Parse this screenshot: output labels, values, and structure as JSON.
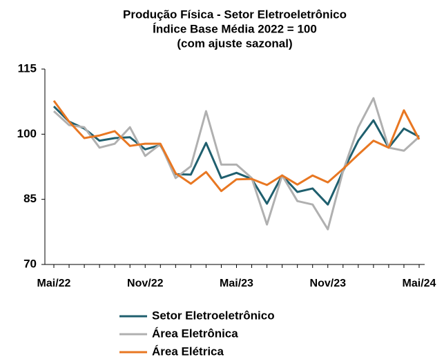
{
  "chart_data": {
    "type": "line",
    "title": [
      "Produção Física - Setor Eletroeletrônico",
      "Índice Base Média 2022 = 100",
      "(com ajuste sazonal)"
    ],
    "categories": [
      "Mai/22",
      null,
      null,
      null,
      null,
      null,
      "Nov/22",
      null,
      null,
      null,
      null,
      null,
      "Mai/23",
      null,
      null,
      null,
      null,
      null,
      "Nov/23",
      null,
      null,
      null,
      null,
      null,
      "Mai/24"
    ],
    "series": [
      {
        "name": "Setor Eletroeletrônico",
        "color": "#1f5f6e",
        "values": [
          106.4,
          102.9,
          101.3,
          98.5,
          99.1,
          99.3,
          96.5,
          97.5,
          90.8,
          90.7,
          98,
          89.9,
          91.1,
          89.7,
          84,
          90.5,
          86.7,
          87.5,
          83.8,
          91.5,
          98.5,
          103.2,
          96.9,
          101.3,
          99.4
        ]
      },
      {
        "name": "Área Eletrônica",
        "color": "#b0b0b0",
        "values": [
          105.3,
          102.1,
          101.6,
          96.9,
          97.8,
          101.6,
          95,
          97.7,
          89.9,
          92.6,
          105.3,
          93,
          93,
          89.9,
          79.2,
          90.5,
          84.6,
          83.8,
          78.1,
          91.5,
          101.6,
          108.3,
          96.9,
          96.2,
          99.4
        ]
      },
      {
        "name": "Área Elétrica",
        "color": "#e87722",
        "values": [
          107.7,
          102.9,
          99.1,
          99.7,
          100.7,
          97.3,
          97.8,
          97.8,
          91,
          88.6,
          91.3,
          86.9,
          89.6,
          89.7,
          88.3,
          90.5,
          88.4,
          90.5,
          88.9,
          92,
          95.3,
          98.5,
          96.9,
          105.5,
          98.8
        ]
      }
    ],
    "ylim": [
      70,
      115
    ],
    "yticks": [
      70,
      85,
      100,
      115
    ],
    "grid": false
  }
}
